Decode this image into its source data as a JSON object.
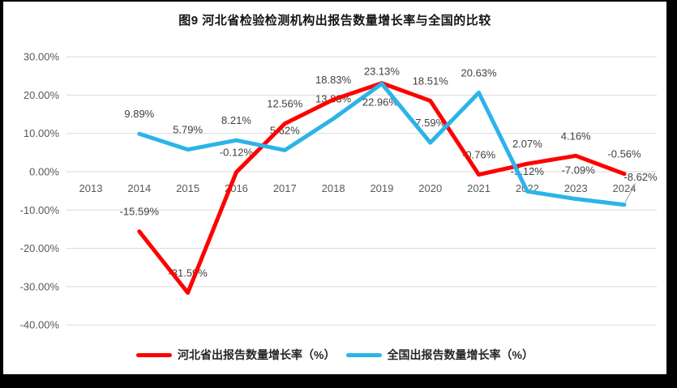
{
  "window": {
    "background": "#000000"
  },
  "page": {
    "background": "#ffffff"
  },
  "chart_data": {
    "type": "line",
    "title": "图9 河北省检验检测机构出报告数量增长率与全国的比较",
    "categories": [
      "2013",
      "2014",
      "2015",
      "2016",
      "2017",
      "2018",
      "2019",
      "2020",
      "2021",
      "2022",
      "2023",
      "2024"
    ],
    "series": [
      {
        "name": "河北省出报告数量增长率（%）",
        "color": "#ff0000",
        "values": [
          null,
          -15.59,
          -31.59,
          -0.12,
          12.56,
          18.83,
          23.13,
          18.51,
          -0.76,
          2.07,
          4.16,
          -0.56
        ]
      },
      {
        "name": "全国出报告数量增长率（%）",
        "color": "#2cb4e8",
        "values": [
          null,
          9.89,
          5.79,
          8.21,
          5.62,
          13.83,
          22.96,
          7.59,
          20.63,
          -5.12,
          -7.09,
          -8.62
        ]
      }
    ],
    "ylim": [
      -40,
      30
    ],
    "ytick_step": 10,
    "ytick_format": "0.00%",
    "grid": true,
    "legend_position": "bottom",
    "axis_text_color": "#595959",
    "grid_color": "#d9d9d9",
    "data_label_color": "#404040",
    "leader_line_color": "#9d9d9d"
  }
}
